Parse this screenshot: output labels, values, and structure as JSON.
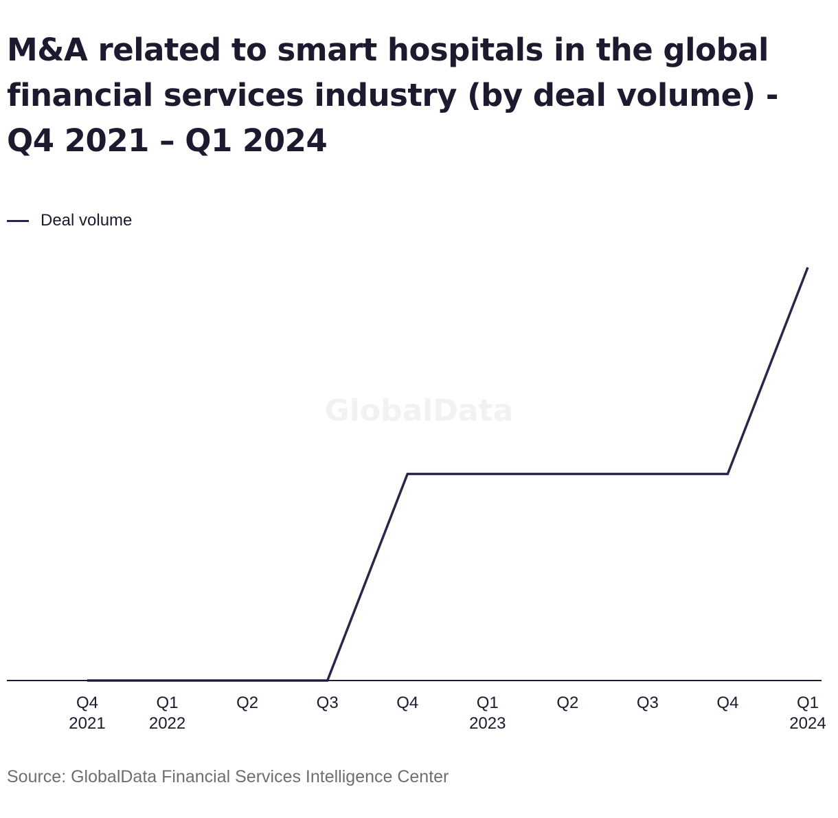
{
  "title": "M&A related to smart hospitals in the global financial services industry (by deal volume) - Q4 2021 – Q1 2024",
  "watermark": "GlobalData",
  "source": "Source: GlobalData Financial Services Intelligence Center",
  "colors": {
    "line": "#2e2449",
    "text": "#1c1a2e",
    "source": "#6e6e6e",
    "axis": "#1c1a2e",
    "watermark": "#f2f2f4"
  },
  "chart_data": {
    "type": "line",
    "title": "M&A related to smart hospitals in the global financial services industry (by deal volume) - Q4 2021 – Q1 2024",
    "categories": [
      "Q4 2021",
      "Q1 2022",
      "Q2 2022",
      "Q3 2022",
      "Q4 2022",
      "Q1 2023",
      "Q2 2023",
      "Q3 2023",
      "Q4 2023",
      "Q1 2024"
    ],
    "tick_labels": [
      [
        "Q4",
        "2021"
      ],
      [
        "Q1",
        "2022"
      ],
      [
        "Q2"
      ],
      [
        "Q3"
      ],
      [
        "Q4"
      ],
      [
        "Q1",
        "2023"
      ],
      [
        "Q2"
      ],
      [
        "Q3"
      ],
      [
        "Q4"
      ],
      [
        "Q1",
        "2024"
      ]
    ],
    "series": [
      {
        "name": "Deal volume",
        "values": [
          0,
          0,
          0,
          0,
          1,
          1,
          1,
          1,
          1,
          2
        ]
      }
    ],
    "ylim": [
      0,
      2
    ],
    "y_axis_labels": false,
    "grid": false,
    "legend": "top-left",
    "xlabel": "",
    "ylabel": ""
  }
}
